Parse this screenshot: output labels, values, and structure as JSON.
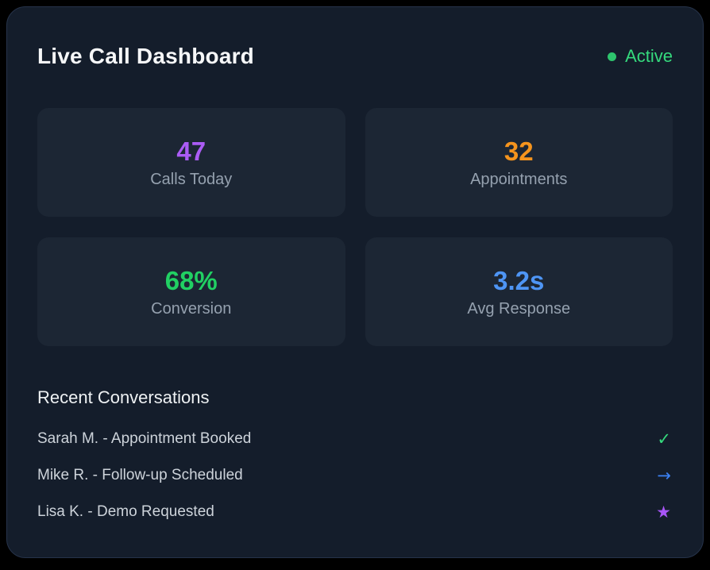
{
  "header": {
    "title": "Live Call Dashboard",
    "status": {
      "label": "Active",
      "color": "#35d97d",
      "dot_color": "#2ec46d"
    }
  },
  "stats": [
    {
      "value": "47",
      "label": "Calls Today",
      "color": "#ab5cf5"
    },
    {
      "value": "32",
      "label": "Appointments",
      "color": "#f5941d"
    },
    {
      "value": "68%",
      "label": "Conversion",
      "color": "#21d063"
    },
    {
      "value": "3.2s",
      "label": "Avg Response",
      "color": "#4e95f5"
    }
  ],
  "conversations": {
    "heading": "Recent Conversations",
    "items": [
      {
        "text": "Sarah M. - Appointment Booked",
        "icon": "✓",
        "icon_name": "check-icon",
        "icon_color": "#35d97d"
      },
      {
        "text": "Mike R. - Follow-up Scheduled",
        "icon": "→",
        "icon_name": "arrow-right-icon",
        "icon_color": "#3b82f6"
      },
      {
        "text": "Lisa K. - Demo Requested",
        "icon": "★",
        "icon_name": "star-icon",
        "icon_color": "#a855f7"
      }
    ]
  },
  "colors": {
    "page_bg": "#000000",
    "card_bg": "#141d2b",
    "card_border": "#26334a",
    "stat_card_bg": "#1c2634",
    "label_gray": "#95a1af",
    "list_text": "#cdd3da"
  }
}
